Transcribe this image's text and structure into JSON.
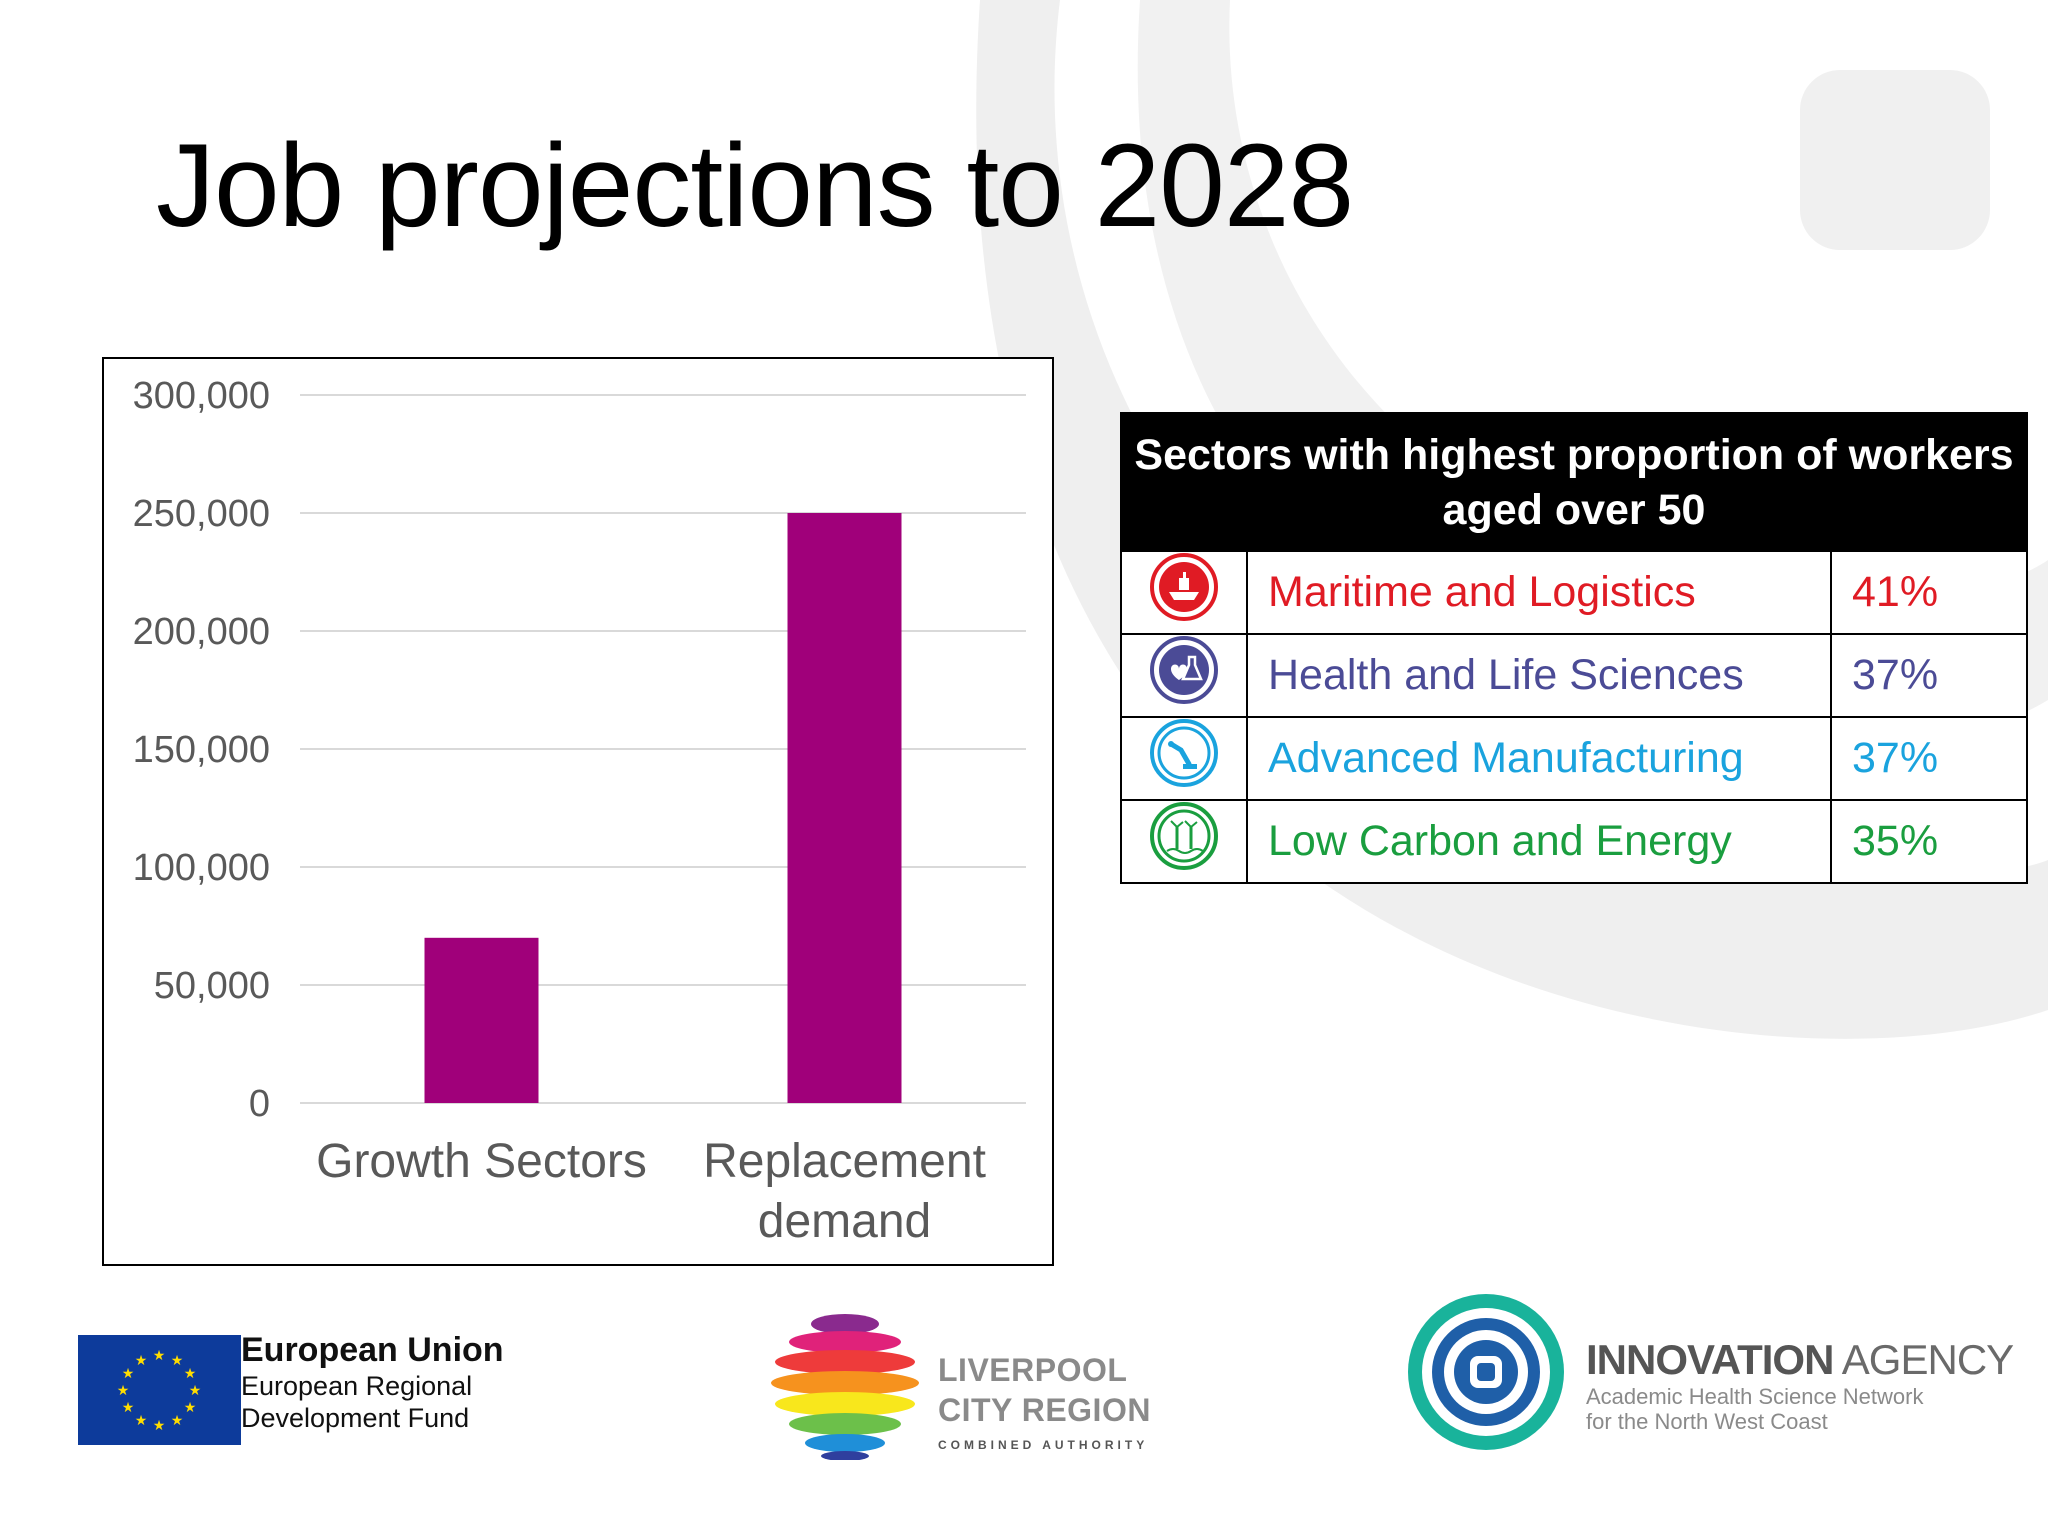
{
  "slide": {
    "title": "Job projections to 2028"
  },
  "chart_data": {
    "type": "bar",
    "categories": [
      "Growth Sectors",
      "Replacement demand"
    ],
    "category_lines": [
      [
        "Growth Sectors"
      ],
      [
        "Replacement",
        "demand"
      ]
    ],
    "values": [
      70000,
      250000
    ],
    "ylim": [
      0,
      300000
    ],
    "y_ticks": [
      0,
      50000,
      100000,
      150000,
      200000,
      250000,
      300000
    ],
    "y_tick_labels": [
      "0",
      "50,000",
      "100,000",
      "150,000",
      "200,000",
      "250,000",
      "300,000"
    ],
    "title": "",
    "xlabel": "",
    "ylabel": "",
    "grid": true,
    "bar_color": "#a0007a",
    "grid_color": "#d9d9d9",
    "tick_label_color": "#595959"
  },
  "sector_table": {
    "header": "Sectors with highest proportion of workers aged over 50",
    "rows": [
      {
        "icon": "ship-icon",
        "name": "Maritime and Logistics",
        "pct": "41%",
        "color": "#e01b24"
      },
      {
        "icon": "health-science-icon",
        "name": "Health and Life Sciences",
        "pct": "37%",
        "color": "#4b4b96"
      },
      {
        "icon": "robot-arm-icon",
        "name": "Advanced Manufacturing",
        "pct": "37%",
        "color": "#1aa3de"
      },
      {
        "icon": "wind-turbine-icon",
        "name": "Low Carbon and Energy",
        "pct": "35%",
        "color": "#1a9e3f"
      }
    ]
  },
  "logos": {
    "eu": {
      "title": "European Union",
      "line1": "European Regional",
      "line2": "Development Fund"
    },
    "lcr": {
      "line1": "LIVERPOOL",
      "line2": "CITY REGION",
      "line3": "COMBINED AUTHORITY"
    },
    "ia": {
      "name_bold": "INNOVATION",
      "name_rest": " AGENCY",
      "line1": "Academic Health Science Network",
      "line2": "for the North West Coast"
    }
  },
  "colors": {
    "background": "#ffffff",
    "swirl": "#eeeeee"
  }
}
